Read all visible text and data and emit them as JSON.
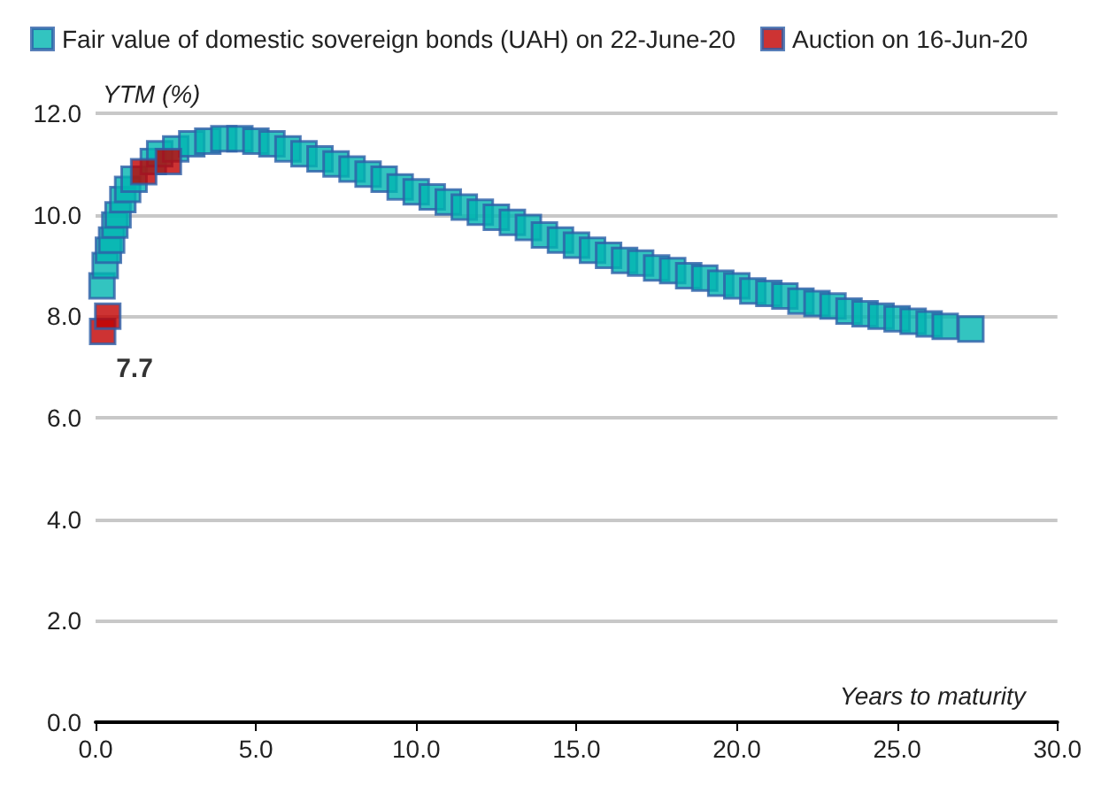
{
  "chart_data": {
    "type": "scatter",
    "xlabel": "Years to maturity",
    "ylabel": "YTM (%)",
    "xlim": [
      0,
      30
    ],
    "xticks": [
      {
        "value": 0,
        "label": "0.0"
      },
      {
        "value": 5,
        "label": "5.0"
      },
      {
        "value": 10,
        "label": "10.0"
      },
      {
        "value": 15,
        "label": "15.0"
      },
      {
        "value": 20,
        "label": "20.0"
      },
      {
        "value": 25,
        "label": "25.0"
      },
      {
        "value": 30,
        "label": "30.0"
      }
    ],
    "ylim": [
      0,
      12
    ],
    "yticks": [
      {
        "value": 0,
        "label": "0.0"
      },
      {
        "value": 2,
        "label": "2.0"
      },
      {
        "value": 4,
        "label": "4.0"
      },
      {
        "value": 6,
        "label": "6.0"
      },
      {
        "value": 8,
        "label": "8.0"
      },
      {
        "value": 10,
        "label": "10.0"
      },
      {
        "value": 12,
        "label": "12.0"
      }
    ],
    "grid": "y",
    "legend": "top",
    "marker": "square",
    "series": [
      {
        "name": "Fair value of domestic sovereign bonds (UAH) on 22-June-20",
        "color": "#00b5b0",
        "x": [
          0.2,
          0.3,
          0.4,
          0.5,
          0.6,
          0.7,
          0.85,
          1.0,
          1.2,
          1.5,
          1.8,
          2.0,
          2.5,
          3.0,
          3.5,
          4.0,
          4.5,
          5.0,
          5.5,
          6.0,
          6.5,
          7.0,
          7.5,
          8.0,
          8.5,
          9.0,
          9.5,
          10.0,
          10.5,
          11.0,
          11.5,
          12.0,
          12.5,
          13.0,
          13.5,
          14.0,
          14.5,
          15.0,
          15.5,
          16.0,
          16.5,
          17.0,
          17.5,
          18.0,
          18.5,
          19.0,
          19.5,
          20.0,
          20.5,
          21.0,
          21.5,
          22.0,
          22.5,
          23.0,
          23.5,
          24.0,
          24.5,
          25.0,
          25.5,
          26.0,
          26.5,
          27.3
        ],
        "values": [
          8.6,
          9.0,
          9.3,
          9.5,
          9.8,
          10.0,
          10.3,
          10.5,
          10.7,
          null,
          11.05,
          11.2,
          11.3,
          11.4,
          11.45,
          11.5,
          11.5,
          11.45,
          11.4,
          11.3,
          11.2,
          11.1,
          11.0,
          10.9,
          10.8,
          10.7,
          10.55,
          10.45,
          10.35,
          10.25,
          10.15,
          10.05,
          9.95,
          9.85,
          9.75,
          9.6,
          9.5,
          9.4,
          9.3,
          9.2,
          9.1,
          9.05,
          8.95,
          8.9,
          8.8,
          8.75,
          8.65,
          8.6,
          8.5,
          8.45,
          8.4,
          8.3,
          8.25,
          8.2,
          8.1,
          8.05,
          8.0,
          7.95,
          7.9,
          7.85,
          7.8,
          7.75
        ]
      },
      {
        "name": "Auction on 16-Jun-20",
        "color": "#c00000",
        "x": [
          0.22,
          0.38,
          1.5,
          2.27
        ],
        "values": [
          7.7,
          8.0,
          10.85,
          11.05
        ],
        "value_labels": [
          "7.7",
          null,
          null,
          null
        ]
      }
    ]
  }
}
